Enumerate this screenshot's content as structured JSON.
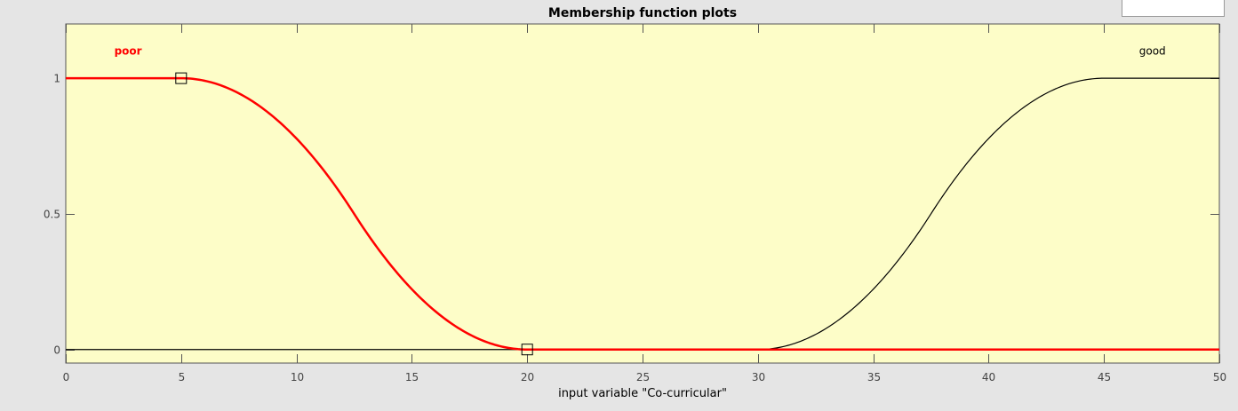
{
  "chart_data": {
    "type": "line",
    "title": "Membership function plots",
    "xlabel": "input variable \"Co-curricular\"",
    "ylabel": "",
    "xlim": [
      0,
      50
    ],
    "ylim": [
      -0.05,
      1.2
    ],
    "x_ticks": [
      0,
      5,
      10,
      15,
      20,
      25,
      30,
      35,
      40,
      45,
      50
    ],
    "y_ticks": [
      0,
      0.5,
      1
    ],
    "y_tick_labels": [
      "0",
      "0.5",
      "1"
    ],
    "background_color": "#fdfdc8",
    "series": [
      {
        "name": "poor",
        "shape": "z-shaped",
        "params": [
          5,
          20
        ],
        "color": "#ff0000",
        "selected": true,
        "label_x": 2.7,
        "label_y": 1.1,
        "handles": [
          [
            5,
            1
          ],
          [
            20,
            0
          ]
        ]
      },
      {
        "name": "good",
        "shape": "s-shaped",
        "params": [
          30,
          45
        ],
        "color": "#000000",
        "selected": false,
        "label_x": 47.1,
        "label_y": 1.1
      }
    ]
  }
}
